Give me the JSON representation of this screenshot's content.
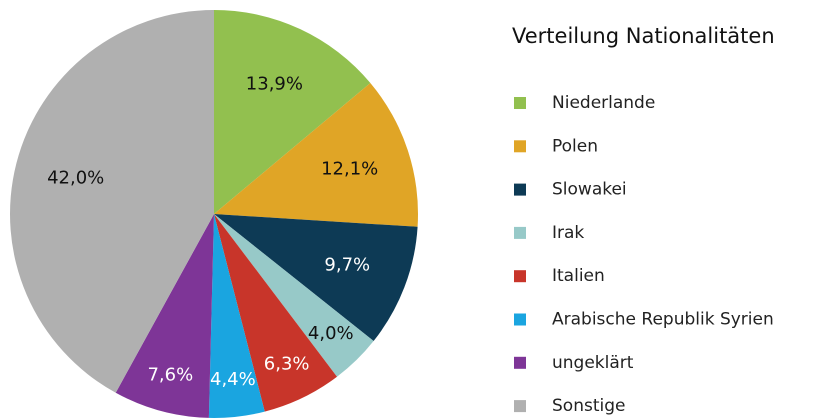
{
  "chart_data": {
    "type": "pie",
    "title": "Verteilung Nationalitäten",
    "categories": [
      "Niederlande",
      "Polen",
      "Slowakei",
      "Irak",
      "Italien",
      "Arabische Republik Syrien",
      "ungeklärt",
      "Sonstige"
    ],
    "values": [
      13.9,
      12.1,
      9.7,
      4.0,
      6.3,
      4.4,
      7.6,
      42.0
    ],
    "value_labels": [
      "13,9%",
      "12,1%",
      "9,7%",
      "4,0%",
      "6,3%",
      "4,4%",
      "7,6%",
      "42,0%"
    ],
    "colors": [
      "#92c04f",
      "#e0a526",
      "#0d3a55",
      "#97c9c8",
      "#c8352a",
      "#1aa5e0",
      "#7e3597",
      "#b0b0b0"
    ],
    "legend": "right"
  }
}
